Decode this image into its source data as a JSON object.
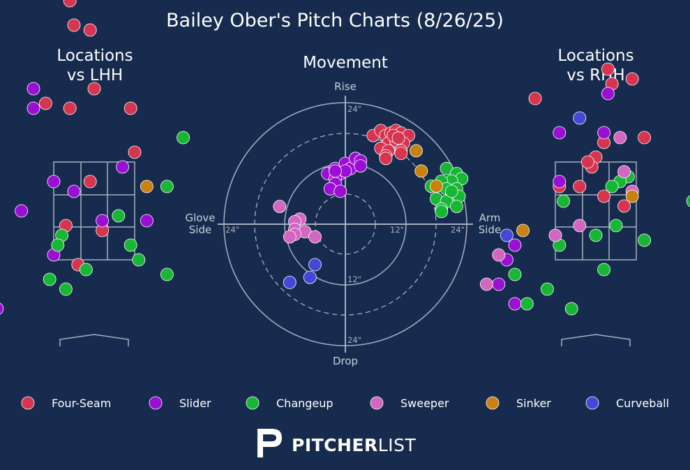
{
  "title": "Bailey Ober's Pitch Charts (8/26/25)",
  "panels": {
    "lhh_title_line1": "Locations",
    "lhh_title_line2": "vs LHH",
    "movement_title": "Movement",
    "rhh_title_line1": "Locations",
    "rhh_title_line2": "vs RHH"
  },
  "movement_axis": {
    "top": "Rise",
    "bottom": "Drop",
    "left_line1": "Glove",
    "left_line2": "Side",
    "right_line1": "Arm",
    "right_line2": "Side",
    "tick_24": "24\"",
    "tick_12": "12\""
  },
  "pitch_types": [
    {
      "name": "Four-Seam",
      "color": "#d6344f"
    },
    {
      "name": "Slider",
      "color": "#9b0fd4"
    },
    {
      "name": "Changeup",
      "color": "#17b634"
    },
    {
      "name": "Sweeper",
      "color": "#d266c0"
    },
    {
      "name": "Sinker",
      "color": "#c9820f"
    },
    {
      "name": "Curveball",
      "color": "#4646d8"
    }
  ],
  "brand": {
    "bold": "PITCHER",
    "light": "LIST"
  },
  "chart_data": [
    {
      "type": "scatter",
      "title": "Locations vs LHH",
      "x_unit": "plate_x (zone widths from center, catcher view)",
      "y_unit": "plate_z (zone heights)",
      "points": [
        {
          "pitch": "Four-Seam",
          "x": -0.3,
          "y": 2.15
        },
        {
          "pitch": "Four-Seam",
          "x": -0.25,
          "y": 1.9
        },
        {
          "pitch": "Four-Seam",
          "x": -0.05,
          "y": 1.85
        },
        {
          "pitch": "Four-Seam",
          "x": -1.35,
          "y": 1.35
        },
        {
          "pitch": "Four-Seam",
          "x": -1.25,
          "y": 1.1
        },
        {
          "pitch": "Four-Seam",
          "x": -0.6,
          "y": 1.1
        },
        {
          "pitch": "Four-Seam",
          "x": -0.3,
          "y": 1.05
        },
        {
          "pitch": "Four-Seam",
          "x": 0.0,
          "y": 1.25
        },
        {
          "pitch": "Four-Seam",
          "x": 0.45,
          "y": 1.05
        },
        {
          "pitch": "Four-Seam",
          "x": -1.25,
          "y": 0.9
        },
        {
          "pitch": "Four-Seam",
          "x": 0.5,
          "y": 0.6
        },
        {
          "pitch": "Four-Seam",
          "x": -1.25,
          "y": 0.35
        },
        {
          "pitch": "Four-Seam",
          "x": -0.05,
          "y": 0.3
        },
        {
          "pitch": "Four-Seam",
          "x": -0.35,
          "y": -0.15
        },
        {
          "pitch": "Four-Seam",
          "x": 0.1,
          "y": -0.2
        },
        {
          "pitch": "Four-Seam",
          "x": -0.2,
          "y": -0.55
        },
        {
          "pitch": "Slider",
          "x": -1.4,
          "y": 1.1
        },
        {
          "pitch": "Slider",
          "x": -0.75,
          "y": 1.25
        },
        {
          "pitch": "Slider",
          "x": -0.75,
          "y": 1.05
        },
        {
          "pitch": "Slider",
          "x": -0.5,
          "y": 0.3
        },
        {
          "pitch": "Slider",
          "x": -0.25,
          "y": 0.2
        },
        {
          "pitch": "Slider",
          "x": 0.35,
          "y": 0.45
        },
        {
          "pitch": "Slider",
          "x": -0.9,
          "y": 0.0
        },
        {
          "pitch": "Slider",
          "x": 0.1,
          "y": -0.1
        },
        {
          "pitch": "Slider",
          "x": 0.65,
          "y": -0.1
        },
        {
          "pitch": "Slider",
          "x": -0.5,
          "y": -0.45
        },
        {
          "pitch": "Slider",
          "x": -1.2,
          "y": -1.0
        },
        {
          "pitch": "Changeup",
          "x": 1.1,
          "y": 0.75
        },
        {
          "pitch": "Changeup",
          "x": 0.9,
          "y": 0.25
        },
        {
          "pitch": "Changeup",
          "x": 0.3,
          "y": -0.05
        },
        {
          "pitch": "Changeup",
          "x": -0.4,
          "y": -0.25
        },
        {
          "pitch": "Changeup",
          "x": -0.45,
          "y": -0.35
        },
        {
          "pitch": "Changeup",
          "x": 0.45,
          "y": -0.35
        },
        {
          "pitch": "Changeup",
          "x": 0.55,
          "y": -0.5
        },
        {
          "pitch": "Changeup",
          "x": -0.1,
          "y": -0.6
        },
        {
          "pitch": "Changeup",
          "x": 0.9,
          "y": -0.65
        },
        {
          "pitch": "Changeup",
          "x": -0.55,
          "y": -0.7
        },
        {
          "pitch": "Changeup",
          "x": -0.35,
          "y": -0.8
        },
        {
          "pitch": "Sinker",
          "x": 0.65,
          "y": 0.25
        },
        {
          "pitch": "Curveball",
          "x": -1.4,
          "y": -1.65
        }
      ]
    },
    {
      "type": "scatter",
      "title": "Movement",
      "x_unit": "horizontal break (in, arm side positive)",
      "y_unit": "induced vertical break (in)",
      "xlim": [
        -24,
        24
      ],
      "ylim": [
        -24,
        24
      ],
      "rings_in": [
        6,
        12,
        18,
        24
      ],
      "points": [
        {
          "pitch": "Four-Seam",
          "x": 5.5,
          "y": 17.5
        },
        {
          "pitch": "Four-Seam",
          "x": 7.0,
          "y": 18.5
        },
        {
          "pitch": "Four-Seam",
          "x": 8.0,
          "y": 17.5
        },
        {
          "pitch": "Four-Seam",
          "x": 9.0,
          "y": 18.0
        },
        {
          "pitch": "Four-Seam",
          "x": 10.0,
          "y": 18.5
        },
        {
          "pitch": "Four-Seam",
          "x": 11.0,
          "y": 18.0
        },
        {
          "pitch": "Four-Seam",
          "x": 12.5,
          "y": 17.5
        },
        {
          "pitch": "Four-Seam",
          "x": 8.5,
          "y": 16.0
        },
        {
          "pitch": "Four-Seam",
          "x": 10.0,
          "y": 16.5
        },
        {
          "pitch": "Four-Seam",
          "x": 11.5,
          "y": 16.0
        },
        {
          "pitch": "Four-Seam",
          "x": 7.0,
          "y": 15.0
        },
        {
          "pitch": "Four-Seam",
          "x": 8.5,
          "y": 14.5
        },
        {
          "pitch": "Four-Seam",
          "x": 11.0,
          "y": 14.5
        },
        {
          "pitch": "Four-Seam",
          "x": 8.0,
          "y": 13.5
        },
        {
          "pitch": "Four-Seam",
          "x": 11.0,
          "y": 14.0
        },
        {
          "pitch": "Four-Seam",
          "x": 8.0,
          "y": 13.0
        },
        {
          "pitch": "Four-Seam",
          "x": 9.5,
          "y": 17.5
        },
        {
          "pitch": "Four-Seam",
          "x": 10.5,
          "y": 17.0
        },
        {
          "pitch": "Slider",
          "x": -3.5,
          "y": 10.0
        },
        {
          "pitch": "Slider",
          "x": -2.0,
          "y": 11.0
        },
        {
          "pitch": "Slider",
          "x": -1.0,
          "y": 10.0
        },
        {
          "pitch": "Slider",
          "x": 0.0,
          "y": 12.0
        },
        {
          "pitch": "Slider",
          "x": 1.0,
          "y": 11.0
        },
        {
          "pitch": "Slider",
          "x": 2.0,
          "y": 13.0
        },
        {
          "pitch": "Slider",
          "x": 3.0,
          "y": 12.5
        },
        {
          "pitch": "Slider",
          "x": 3.0,
          "y": 11.5
        },
        {
          "pitch": "Slider",
          "x": 0.0,
          "y": 10.5
        },
        {
          "pitch": "Slider",
          "x": -2.0,
          "y": 9.0
        },
        {
          "pitch": "Slider",
          "x": -2.0,
          "y": 8.0
        },
        {
          "pitch": "Slider",
          "x": -3.0,
          "y": 7.0
        },
        {
          "pitch": "Slider",
          "x": -1.0,
          "y": 6.5
        },
        {
          "pitch": "Slider",
          "x": -2.0,
          "y": 10.5
        },
        {
          "pitch": "Changeup",
          "x": 20.0,
          "y": 11.0
        },
        {
          "pitch": "Changeup",
          "x": 22.0,
          "y": 10.0
        },
        {
          "pitch": "Changeup",
          "x": 23.0,
          "y": 9.0
        },
        {
          "pitch": "Changeup",
          "x": 21.0,
          "y": 8.5
        },
        {
          "pitch": "Changeup",
          "x": 19.0,
          "y": 8.5
        },
        {
          "pitch": "Changeup",
          "x": 17.0,
          "y": 7.5
        },
        {
          "pitch": "Changeup",
          "x": 20.0,
          "y": 7.0
        },
        {
          "pitch": "Changeup",
          "x": 22.0,
          "y": 7.0
        },
        {
          "pitch": "Changeup",
          "x": 21.0,
          "y": 6.0
        },
        {
          "pitch": "Changeup",
          "x": 22.5,
          "y": 5.5
        },
        {
          "pitch": "Changeup",
          "x": 18.0,
          "y": 5.0
        },
        {
          "pitch": "Changeup",
          "x": 20.0,
          "y": 4.5
        },
        {
          "pitch": "Changeup",
          "x": 19.0,
          "y": 3.0
        },
        {
          "pitch": "Changeup",
          "x": 22.0,
          "y": 3.5
        },
        {
          "pitch": "Changeup",
          "x": 19.0,
          "y": 2.5
        },
        {
          "pitch": "Changeup",
          "x": 21.0,
          "y": 6.5
        },
        {
          "pitch": "Sinker",
          "x": 14.0,
          "y": 14.5
        },
        {
          "pitch": "Sinker",
          "x": 15.0,
          "y": 10.5
        },
        {
          "pitch": "Sinker",
          "x": 18.0,
          "y": 7.5
        },
        {
          "pitch": "Sweeper",
          "x": -13.0,
          "y": 3.5
        },
        {
          "pitch": "Sweeper",
          "x": -9.0,
          "y": 1.0
        },
        {
          "pitch": "Sweeper",
          "x": -10.0,
          "y": 0.5
        },
        {
          "pitch": "Sweeper",
          "x": -10.0,
          "y": -1.0
        },
        {
          "pitch": "Sweeper",
          "x": -8.0,
          "y": -1.5
        },
        {
          "pitch": "Sweeper",
          "x": -10.0,
          "y": -2.0
        },
        {
          "pitch": "Sweeper",
          "x": -11.0,
          "y": -2.5
        },
        {
          "pitch": "Sweeper",
          "x": -6.0,
          "y": -2.5
        },
        {
          "pitch": "Curveball",
          "x": -6.0,
          "y": -8.0
        },
        {
          "pitch": "Curveball",
          "x": -7.0,
          "y": -10.5
        },
        {
          "pitch": "Curveball",
          "x": -11.0,
          "y": -11.5
        }
      ]
    },
    {
      "type": "scatter",
      "title": "Locations vs RHH",
      "x_unit": "plate_x (zone widths from center, catcher view)",
      "y_unit": "plate_z (zone heights)",
      "points": [
        {
          "pitch": "Four-Seam",
          "x": 0.15,
          "y": 1.45
        },
        {
          "pitch": "Four-Seam",
          "x": 0.2,
          "y": 1.3
        },
        {
          "pitch": "Four-Seam",
          "x": 0.45,
          "y": 1.35
        },
        {
          "pitch": "Four-Seam",
          "x": -0.75,
          "y": 1.15
        },
        {
          "pitch": "Four-Seam",
          "x": 0.1,
          "y": 0.7
        },
        {
          "pitch": "Four-Seam",
          "x": 0.6,
          "y": 0.75
        },
        {
          "pitch": "Four-Seam",
          "x": 0.0,
          "y": 0.55
        },
        {
          "pitch": "Four-Seam",
          "x": -0.05,
          "y": 0.45
        },
        {
          "pitch": "Four-Seam",
          "x": -0.1,
          "y": 0.5
        },
        {
          "pitch": "Four-Seam",
          "x": -0.45,
          "y": 0.25
        },
        {
          "pitch": "Four-Seam",
          "x": -0.2,
          "y": 0.25
        },
        {
          "pitch": "Four-Seam",
          "x": 0.1,
          "y": 0.15
        },
        {
          "pitch": "Four-Seam",
          "x": 0.35,
          "y": 0.05
        },
        {
          "pitch": "Slider",
          "x": 0.15,
          "y": 1.2
        },
        {
          "pitch": "Slider",
          "x": -0.45,
          "y": 0.8
        },
        {
          "pitch": "Slider",
          "x": 0.1,
          "y": 0.8
        },
        {
          "pitch": "Slider",
          "x": -0.45,
          "y": 0.3
        },
        {
          "pitch": "Slider",
          "x": -1.0,
          "y": -0.35
        },
        {
          "pitch": "Slider",
          "x": -1.1,
          "y": -0.5
        },
        {
          "pitch": "Slider",
          "x": -1.2,
          "y": -0.75
        },
        {
          "pitch": "Slider",
          "x": -1.0,
          "y": -0.95
        },
        {
          "pitch": "Changeup",
          "x": 0.4,
          "y": 0.35
        },
        {
          "pitch": "Changeup",
          "x": 0.3,
          "y": 0.3
        },
        {
          "pitch": "Changeup",
          "x": 0.2,
          "y": 0.25
        },
        {
          "pitch": "Changeup",
          "x": -0.4,
          "y": 0.1
        },
        {
          "pitch": "Changeup",
          "x": 0.25,
          "y": -0.15
        },
        {
          "pitch": "Changeup",
          "x": 0.0,
          "y": -0.25
        },
        {
          "pitch": "Changeup",
          "x": -0.45,
          "y": -0.35
        },
        {
          "pitch": "Changeup",
          "x": 0.6,
          "y": -0.3
        },
        {
          "pitch": "Changeup",
          "x": 0.1,
          "y": -0.6
        },
        {
          "pitch": "Changeup",
          "x": 1.2,
          "y": 0.1
        },
        {
          "pitch": "Changeup",
          "x": 1.45,
          "y": 0.05
        },
        {
          "pitch": "Changeup",
          "x": -1.0,
          "y": -0.65
        },
        {
          "pitch": "Changeup",
          "x": -0.6,
          "y": -0.8
        },
        {
          "pitch": "Changeup",
          "x": -0.85,
          "y": -0.95
        },
        {
          "pitch": "Changeup",
          "x": -0.3,
          "y": -1.0
        },
        {
          "pitch": "Sweeper",
          "x": 0.3,
          "y": 0.75
        },
        {
          "pitch": "Sweeper",
          "x": 0.35,
          "y": 0.4
        },
        {
          "pitch": "Sweeper",
          "x": -0.2,
          "y": -0.15
        },
        {
          "pitch": "Sweeper",
          "x": -0.5,
          "y": -0.25
        },
        {
          "pitch": "Sweeper",
          "x": -1.2,
          "y": -0.45
        },
        {
          "pitch": "Sweeper",
          "x": 0.45,
          "y": 0.2
        },
        {
          "pitch": "Sweeper",
          "x": -1.35,
          "y": -0.75
        },
        {
          "pitch": "Sinker",
          "x": 0.45,
          "y": 0.15
        },
        {
          "pitch": "Sinker",
          "x": -0.9,
          "y": -0.2
        },
        {
          "pitch": "Curveball",
          "x": -0.2,
          "y": 0.95
        },
        {
          "pitch": "Curveball",
          "x": -1.1,
          "y": -0.25
        }
      ]
    }
  ]
}
